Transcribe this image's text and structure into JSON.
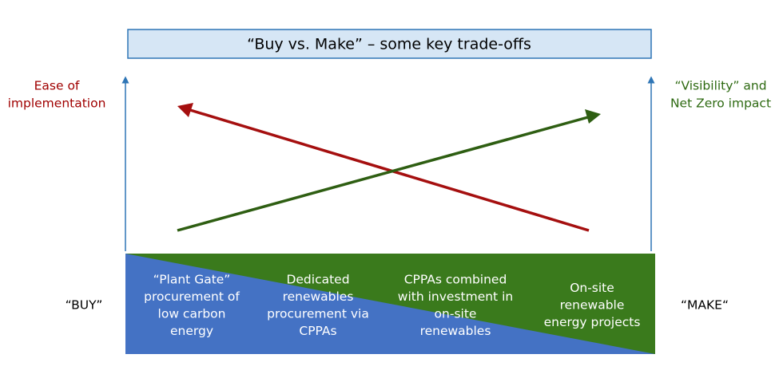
{
  "title": "“Buy vs. Make” – some key trade-offs",
  "left_axis": {
    "lines": [
      "Ease of",
      "implementation"
    ]
  },
  "right_axis": {
    "lines": [
      "“Visibility” and",
      "Net Zero impact"
    ]
  },
  "buy_label": "“BUY”",
  "make_label": "“MAKE“",
  "options": [
    {
      "lines": [
        "“Plant Gate”",
        "procurement of",
        "low carbon",
        "energy"
      ]
    },
    {
      "lines": [
        "Dedicated",
        "renewables",
        "procurement via",
        "CPPAs"
      ]
    },
    {
      "lines": [
        "CPPAs combined",
        "with investment in",
        "on-site",
        "renewables"
      ]
    },
    {
      "lines": [
        "On-site",
        "renewable",
        "energy projects"
      ]
    }
  ]
}
